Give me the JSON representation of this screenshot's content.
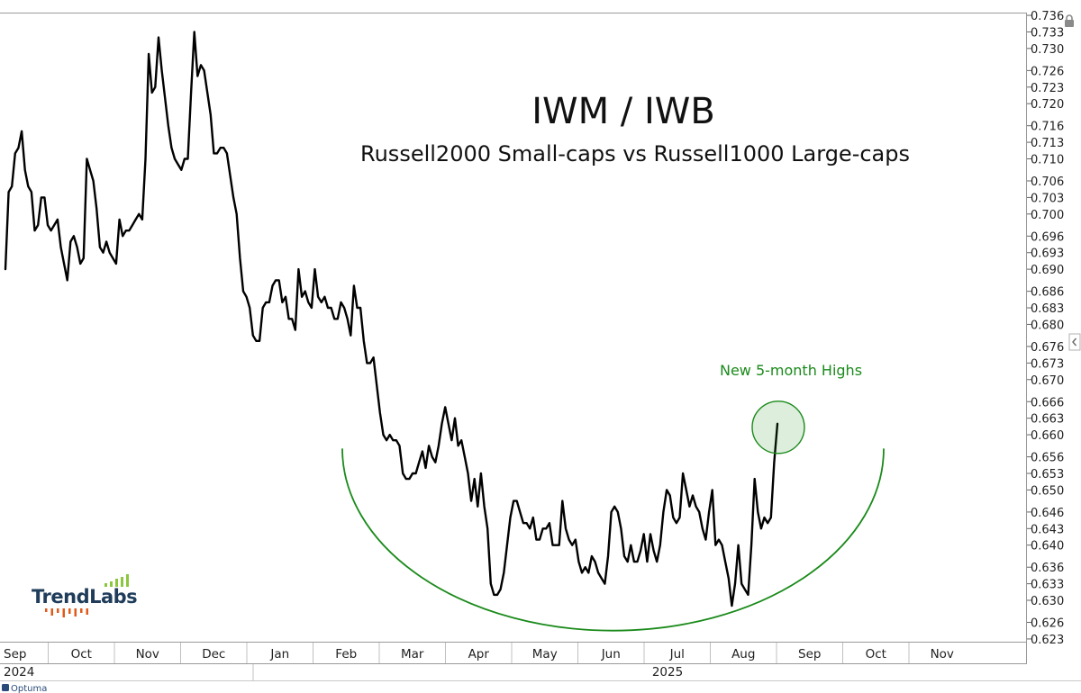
{
  "chart_data": {
    "type": "line",
    "title": "IWM / IWB",
    "subtitle": "Russell2000 Small-caps vs Russell1000 Large-caps",
    "ylim": [
      0.6225,
      0.7365
    ],
    "y_ticks": [
      "0.623",
      "0.626",
      "0.630",
      "0.633",
      "0.636",
      "0.640",
      "0.643",
      "0.646",
      "0.650",
      "0.653",
      "0.656",
      "0.660",
      "0.663",
      "0.666",
      "0.670",
      "0.673",
      "0.676",
      "0.680",
      "0.683",
      "0.686",
      "0.690",
      "0.693",
      "0.696",
      "0.700",
      "0.703",
      "0.706",
      "0.710",
      "0.713",
      "0.716",
      "0.720",
      "0.723",
      "0.726",
      "0.730",
      "0.733",
      "0.736"
    ],
    "x_months": [
      "Sep",
      "Oct",
      "Nov",
      "Dec",
      "Jan",
      "Feb",
      "Mar",
      "Apr",
      "May",
      "Jun",
      "Jul",
      "Aug",
      "Sep",
      "Oct",
      "Nov"
    ],
    "x_years": [
      "2024",
      "2025"
    ],
    "grid": false,
    "line_color": "#000000",
    "series": [
      {
        "x": [
          "2024-09-01",
          "2024-09-02",
          "2024-09-04",
          "2024-09-05",
          "2024-09-06",
          "2024-09-09",
          "2024-09-10",
          "2024-09-11",
          "2024-09-12",
          "2024-09-13",
          "2024-09-16",
          "2024-09-17",
          "2024-09-18",
          "2024-09-19",
          "2024-09-20",
          "2024-09-23",
          "2024-09-24",
          "2024-09-25",
          "2024-09-26",
          "2024-09-27",
          "2024-09-30",
          "2024-10-01",
          "2024-10-02",
          "2024-10-03",
          "2024-10-04",
          "2024-10-07",
          "2024-10-08",
          "2024-10-09",
          "2024-10-10",
          "2024-10-11",
          "2024-10-14",
          "2024-10-15",
          "2024-10-16",
          "2024-10-17",
          "2024-10-18",
          "2024-10-21",
          "2024-10-22",
          "2024-10-23",
          "2024-10-24",
          "2024-10-25",
          "2024-10-28",
          "2024-10-29",
          "2024-10-30",
          "2024-10-31",
          "2024-11-01",
          "2024-11-04",
          "2024-11-05",
          "2024-11-06",
          "2024-11-07",
          "2024-11-08",
          "2024-11-11",
          "2024-11-12",
          "2024-11-13",
          "2024-11-14",
          "2024-11-15",
          "2024-11-18",
          "2024-11-19",
          "2024-11-20",
          "2024-11-21",
          "2024-11-22",
          "2024-11-25",
          "2024-11-26",
          "2024-11-27",
          "2024-11-29",
          "2024-12-02",
          "2024-12-03",
          "2024-12-04",
          "2024-12-05",
          "2024-12-06",
          "2024-12-09",
          "2024-12-10",
          "2024-12-11",
          "2024-12-12",
          "2024-12-13",
          "2024-12-16",
          "2024-12-17",
          "2024-12-18",
          "2024-12-19",
          "2024-12-20",
          "2024-12-23",
          "2024-12-24",
          "2024-12-26",
          "2024-12-27",
          "2024-12-30",
          "2024-12-31",
          "2025-01-02",
          "2025-01-03",
          "2025-01-06",
          "2025-01-07",
          "2025-01-08",
          "2025-01-10",
          "2025-01-13",
          "2025-01-14",
          "2025-01-15",
          "2025-01-16",
          "2025-01-17",
          "2025-01-21",
          "2025-01-22",
          "2025-01-23",
          "2025-01-24",
          "2025-01-27",
          "2025-01-28",
          "2025-01-29",
          "2025-01-30",
          "2025-01-31",
          "2025-02-03",
          "2025-02-04",
          "2025-02-05",
          "2025-02-06",
          "2025-02-07",
          "2025-02-10",
          "2025-02-11",
          "2025-02-12",
          "2025-02-13",
          "2025-02-14",
          "2025-02-18",
          "2025-02-19",
          "2025-02-20",
          "2025-02-21",
          "2025-02-24",
          "2025-02-25",
          "2025-02-26",
          "2025-02-27",
          "2025-02-28",
          "2025-03-03",
          "2025-03-04",
          "2025-03-05",
          "2025-03-06",
          "2025-03-07",
          "2025-03-10",
          "2025-03-11",
          "2025-03-12",
          "2025-03-13",
          "2025-03-14",
          "2025-03-17",
          "2025-03-18",
          "2025-03-19",
          "2025-03-20",
          "2025-03-21",
          "2025-03-24",
          "2025-03-25",
          "2025-03-26",
          "2025-03-27",
          "2025-03-28",
          "2025-03-31",
          "2025-04-01",
          "2025-04-02",
          "2025-04-03",
          "2025-04-04",
          "2025-04-07",
          "2025-04-08",
          "2025-04-09",
          "2025-04-10",
          "2025-04-11",
          "2025-04-14",
          "2025-04-15",
          "2025-04-16",
          "2025-04-17",
          "2025-04-21",
          "2025-04-22",
          "2025-04-23",
          "2025-04-24",
          "2025-04-25",
          "2025-04-28",
          "2025-04-29",
          "2025-04-30",
          "2025-05-01",
          "2025-05-02",
          "2025-05-05",
          "2025-05-06",
          "2025-05-07",
          "2025-05-08",
          "2025-05-09",
          "2025-05-12",
          "2025-05-13",
          "2025-05-14",
          "2025-05-15",
          "2025-05-16",
          "2025-05-19",
          "2025-05-20",
          "2025-05-21",
          "2025-05-22",
          "2025-05-23",
          "2025-05-27",
          "2025-05-28",
          "2025-05-29",
          "2025-05-30",
          "2025-06-02",
          "2025-06-03",
          "2025-06-04",
          "2025-06-05",
          "2025-06-06",
          "2025-06-09",
          "2025-06-10",
          "2025-06-11",
          "2025-06-12",
          "2025-06-13",
          "2025-06-16",
          "2025-06-17",
          "2025-06-18",
          "2025-06-20",
          "2025-06-23",
          "2025-06-24",
          "2025-06-25",
          "2025-06-26",
          "2025-06-27",
          "2025-06-30",
          "2025-07-01",
          "2025-07-02",
          "2025-07-03",
          "2025-07-07",
          "2025-07-08",
          "2025-07-09",
          "2025-07-10",
          "2025-07-11",
          "2025-07-14",
          "2025-07-15",
          "2025-07-16",
          "2025-07-17",
          "2025-07-18",
          "2025-07-21",
          "2025-07-22",
          "2025-07-23",
          "2025-07-24",
          "2025-07-25",
          "2025-07-28",
          "2025-07-29",
          "2025-07-30",
          "2025-07-31",
          "2025-08-01",
          "2025-08-04",
          "2025-08-05",
          "2025-08-06",
          "2025-08-07",
          "2025-08-08",
          "2025-08-11",
          "2025-08-12",
          "2025-08-13"
        ],
        "y": [
          0.69,
          0.704,
          0.705,
          0.711,
          0.712,
          0.715,
          0.708,
          0.705,
          0.704,
          0.697,
          0.698,
          0.703,
          0.703,
          0.698,
          0.697,
          0.698,
          0.699,
          0.694,
          0.691,
          0.688,
          0.695,
          0.696,
          0.694,
          0.691,
          0.692,
          0.71,
          0.708,
          0.706,
          0.701,
          0.694,
          0.693,
          0.695,
          0.693,
          0.692,
          0.691,
          0.699,
          0.696,
          0.697,
          0.697,
          0.698,
          0.699,
          0.7,
          0.699,
          0.71,
          0.729,
          0.722,
          0.723,
          0.732,
          0.726,
          0.721,
          0.716,
          0.712,
          0.71,
          0.709,
          0.708,
          0.71,
          0.71,
          0.722,
          0.733,
          0.725,
          0.727,
          0.726,
          0.722,
          0.718,
          0.711,
          0.711,
          0.712,
          0.712,
          0.711,
          0.707,
          0.703,
          0.7,
          0.692,
          0.686,
          0.685,
          0.683,
          0.678,
          0.677,
          0.677,
          0.683,
          0.684,
          0.684,
          0.687,
          0.688,
          0.688,
          0.684,
          0.685,
          0.681,
          0.681,
          0.679,
          0.69,
          0.685,
          0.686,
          0.684,
          0.683,
          0.69,
          0.685,
          0.684,
          0.685,
          0.683,
          0.683,
          0.681,
          0.681,
          0.684,
          0.683,
          0.681,
          0.678,
          0.687,
          0.683,
          0.683,
          0.677,
          0.673,
          0.673,
          0.674,
          0.669,
          0.664,
          0.66,
          0.659,
          0.66,
          0.659,
          0.659,
          0.658,
          0.653,
          0.652,
          0.652,
          0.653,
          0.653,
          0.655,
          0.657,
          0.654,
          0.658,
          0.656,
          0.655,
          0.658,
          0.662,
          0.665,
          0.662,
          0.659,
          0.663,
          0.658,
          0.659,
          0.656,
          0.653,
          0.648,
          0.652,
          0.647,
          0.653,
          0.647,
          0.643,
          0.633,
          0.631,
          0.631,
          0.632,
          0.635,
          0.64,
          0.645,
          0.648,
          0.648,
          0.646,
          0.644,
          0.644,
          0.643,
          0.645,
          0.641,
          0.641,
          0.643,
          0.643,
          0.644,
          0.64,
          0.64,
          0.64,
          0.648,
          0.643,
          0.641,
          0.64,
          0.641,
          0.637,
          0.635,
          0.636,
          0.635,
          0.638,
          0.637,
          0.635,
          0.634,
          0.633,
          0.638,
          0.646,
          0.647,
          0.646,
          0.643,
          0.638,
          0.637,
          0.64,
          0.637,
          0.637,
          0.639,
          0.642,
          0.637,
          0.642,
          0.639,
          0.637,
          0.64,
          0.646,
          0.65,
          0.649,
          0.645,
          0.644,
          0.645,
          0.653,
          0.65,
          0.647,
          0.649,
          0.647,
          0.646,
          0.643,
          0.641,
          0.646,
          0.65,
          0.64,
          0.641,
          0.64,
          0.637,
          0.634,
          0.629,
          0.633,
          0.64,
          0.633,
          0.632,
          0.631,
          0.64,
          0.652,
          0.646,
          0.643,
          0.645,
          0.644,
          0.645,
          0.655,
          0.662
        ]
      }
    ],
    "annotations": [
      {
        "text": "New 5-month Highs",
        "color": "#1a8a1a",
        "x": "2025-08-13",
        "y": 0.662
      }
    ],
    "overlay_arc": {
      "color": "#1a8a1a",
      "x_start": "2025-02-01",
      "x_end": "2025-10-20",
      "y_ends": 0.6575,
      "y_bottom": 0.6245
    }
  },
  "branding": {
    "logo_text": "TrendLabs",
    "logo_bar_color": "#8cc63f",
    "logo_tick_color": "#e05a1a",
    "credit": "Optuma"
  }
}
